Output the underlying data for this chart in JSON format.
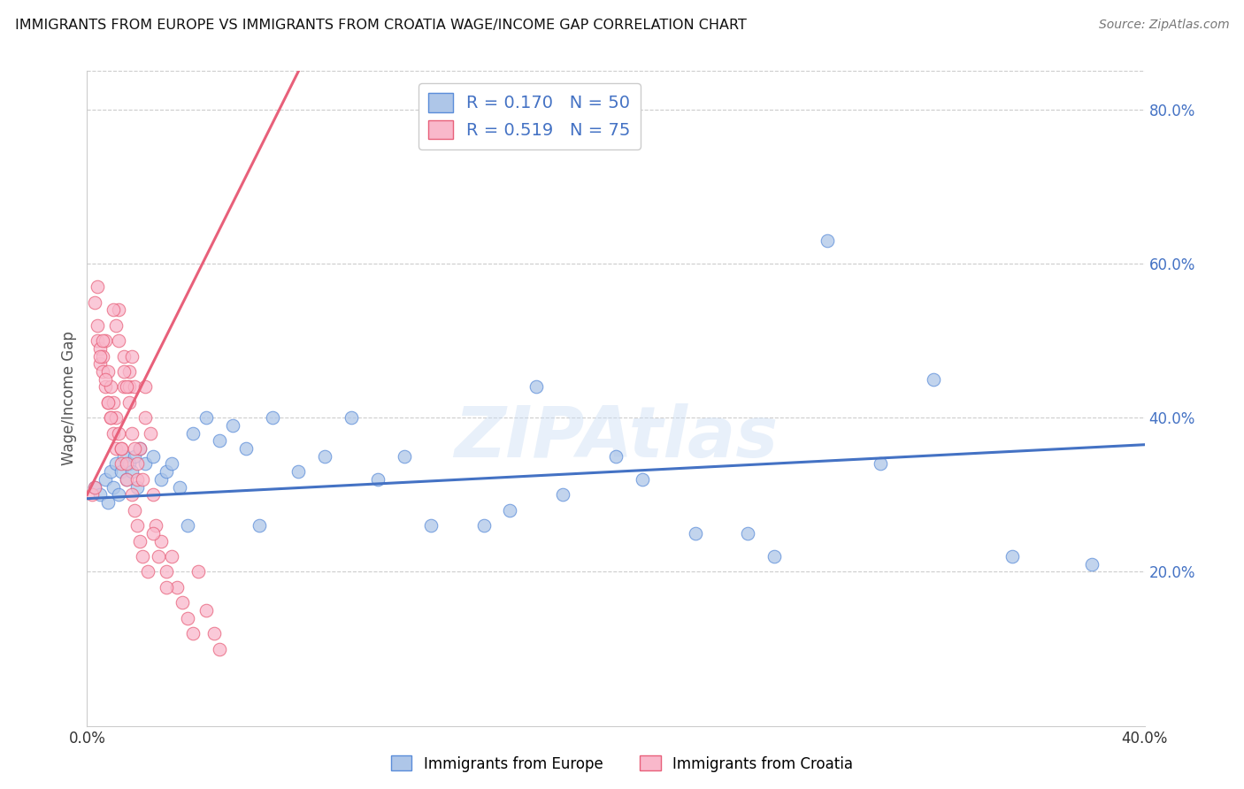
{
  "title": "IMMIGRANTS FROM EUROPE VS IMMIGRANTS FROM CROATIA WAGE/INCOME GAP CORRELATION CHART",
  "source": "Source: ZipAtlas.com",
  "ylabel": "Wage/Income Gap",
  "xlim": [
    0.0,
    0.4
  ],
  "ylim": [
    0.0,
    0.85
  ],
  "xtick_positions": [
    0.0,
    0.05,
    0.1,
    0.15,
    0.2,
    0.25,
    0.3,
    0.35,
    0.4
  ],
  "xtick_labels": [
    "0.0%",
    "",
    "",
    "",
    "",
    "",
    "",
    "",
    "40.0%"
  ],
  "ytick_positions": [
    0.2,
    0.4,
    0.6,
    0.8
  ],
  "ytick_labels": [
    "20.0%",
    "40.0%",
    "60.0%",
    "80.0%"
  ],
  "legend_R1": "0.170",
  "legend_N1": "50",
  "legend_R2": "0.519",
  "legend_N2": "75",
  "color_europe_fill": "#aec6e8",
  "color_europe_edge": "#5b8dd9",
  "color_croatia_fill": "#f9b8cb",
  "color_croatia_edge": "#e8607a",
  "color_line_europe": "#4472c4",
  "color_line_croatia": "#e8607a",
  "watermark": "ZIPAtlas",
  "europe_scatter_x": [
    0.003,
    0.005,
    0.007,
    0.008,
    0.009,
    0.01,
    0.011,
    0.012,
    0.013,
    0.014,
    0.015,
    0.016,
    0.017,
    0.018,
    0.019,
    0.02,
    0.022,
    0.025,
    0.028,
    0.03,
    0.032,
    0.035,
    0.038,
    0.04,
    0.045,
    0.05,
    0.055,
    0.06,
    0.065,
    0.07,
    0.08,
    0.09,
    0.1,
    0.11,
    0.12,
    0.13,
    0.15,
    0.16,
    0.17,
    0.18,
    0.2,
    0.21,
    0.23,
    0.25,
    0.26,
    0.28,
    0.3,
    0.32,
    0.35,
    0.38
  ],
  "europe_scatter_y": [
    0.31,
    0.3,
    0.32,
    0.29,
    0.33,
    0.31,
    0.34,
    0.3,
    0.33,
    0.35,
    0.32,
    0.34,
    0.33,
    0.35,
    0.31,
    0.36,
    0.34,
    0.35,
    0.32,
    0.33,
    0.34,
    0.31,
    0.26,
    0.38,
    0.4,
    0.37,
    0.39,
    0.36,
    0.26,
    0.4,
    0.33,
    0.35,
    0.4,
    0.32,
    0.35,
    0.26,
    0.26,
    0.28,
    0.44,
    0.3,
    0.35,
    0.32,
    0.25,
    0.25,
    0.22,
    0.63,
    0.34,
    0.45,
    0.22,
    0.21
  ],
  "croatia_scatter_x": [
    0.002,
    0.003,
    0.004,
    0.004,
    0.005,
    0.005,
    0.006,
    0.006,
    0.007,
    0.007,
    0.008,
    0.008,
    0.009,
    0.009,
    0.01,
    0.01,
    0.011,
    0.011,
    0.012,
    0.012,
    0.013,
    0.013,
    0.014,
    0.014,
    0.015,
    0.015,
    0.016,
    0.016,
    0.017,
    0.017,
    0.018,
    0.018,
    0.019,
    0.019,
    0.02,
    0.02,
    0.021,
    0.022,
    0.022,
    0.023,
    0.024,
    0.025,
    0.026,
    0.027,
    0.028,
    0.03,
    0.032,
    0.034,
    0.036,
    0.038,
    0.04,
    0.042,
    0.045,
    0.048,
    0.05,
    0.003,
    0.004,
    0.005,
    0.006,
    0.007,
    0.008,
    0.009,
    0.01,
    0.011,
    0.012,
    0.013,
    0.014,
    0.015,
    0.016,
    0.017,
    0.018,
    0.019,
    0.021,
    0.025,
    0.03
  ],
  "croatia_scatter_y": [
    0.3,
    0.31,
    0.52,
    0.5,
    0.47,
    0.49,
    0.46,
    0.48,
    0.44,
    0.5,
    0.42,
    0.46,
    0.4,
    0.44,
    0.38,
    0.42,
    0.36,
    0.4,
    0.5,
    0.54,
    0.34,
    0.36,
    0.48,
    0.44,
    0.32,
    0.34,
    0.44,
    0.46,
    0.3,
    0.48,
    0.28,
    0.44,
    0.26,
    0.32,
    0.24,
    0.36,
    0.22,
    0.44,
    0.4,
    0.2,
    0.38,
    0.3,
    0.26,
    0.22,
    0.24,
    0.2,
    0.22,
    0.18,
    0.16,
    0.14,
    0.12,
    0.2,
    0.15,
    0.12,
    0.1,
    0.55,
    0.57,
    0.48,
    0.5,
    0.45,
    0.42,
    0.4,
    0.54,
    0.52,
    0.38,
    0.36,
    0.46,
    0.44,
    0.42,
    0.38,
    0.36,
    0.34,
    0.32,
    0.25,
    0.18
  ],
  "europe_line_x": [
    0.0,
    0.4
  ],
  "europe_line_y": [
    0.295,
    0.365
  ],
  "croatia_line_x": [
    0.0,
    0.08
  ],
  "croatia_line_y": [
    0.3,
    0.85
  ]
}
